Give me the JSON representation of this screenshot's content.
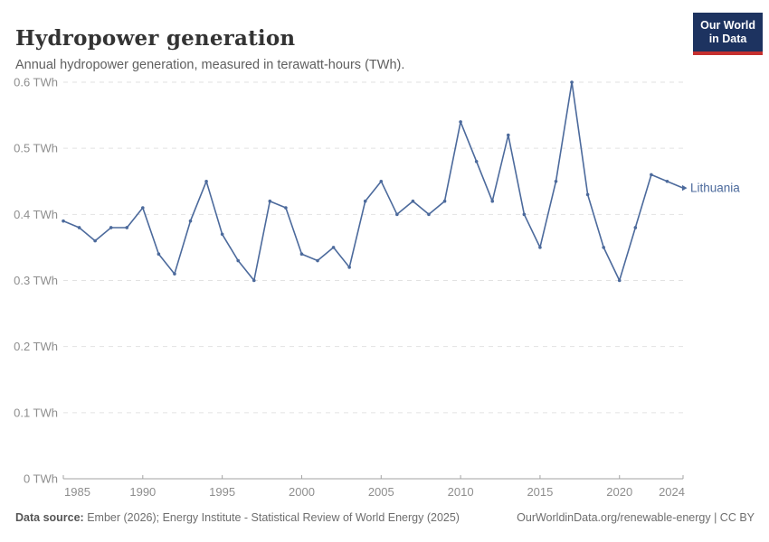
{
  "header": {
    "title": "Hydropower generation",
    "subtitle": "Annual hydropower generation, measured in terawatt-hours (TWh).",
    "logo": {
      "line1": "Our World",
      "line2": "in Data",
      "bg_color": "#1d3360",
      "stripe_color": "#c5302f"
    }
  },
  "footer": {
    "source_label": "Data source:",
    "source_text": " Ember (2026); Energy Institute - Statistical Review of World Energy (2025)",
    "rights_text": "OurWorldinData.org/renewable-energy | CC BY"
  },
  "chart_data": {
    "type": "line",
    "title": "Hydropower generation",
    "unit": "TWh",
    "xlim": [
      1985,
      2024
    ],
    "ylim": [
      0,
      0.6
    ],
    "grid": "horizontal-dashed",
    "legend_position": "line-end-label",
    "xticks": [
      1985,
      1990,
      1995,
      2000,
      2005,
      2010,
      2015,
      2020,
      2024
    ],
    "yticks": [
      0,
      0.1,
      0.2,
      0.3,
      0.4,
      0.5,
      0.6
    ],
    "x": [
      1985,
      1986,
      1987,
      1988,
      1989,
      1990,
      1991,
      1992,
      1993,
      1994,
      1995,
      1996,
      1997,
      1998,
      1999,
      2000,
      2001,
      2002,
      2003,
      2004,
      2005,
      2006,
      2007,
      2008,
      2009,
      2010,
      2011,
      2012,
      2013,
      2014,
      2015,
      2016,
      2017,
      2018,
      2019,
      2020,
      2021,
      2022,
      2023,
      2024
    ],
    "series": [
      {
        "name": "Lithuania",
        "color": "#4c6a9c",
        "values": [
          0.39,
          0.38,
          0.36,
          0.38,
          0.38,
          0.41,
          0.34,
          0.31,
          0.39,
          0.45,
          0.37,
          0.33,
          0.3,
          0.42,
          0.41,
          0.34,
          0.33,
          0.35,
          0.32,
          0.42,
          0.45,
          0.4,
          0.42,
          0.4,
          0.42,
          0.54,
          0.48,
          0.42,
          0.52,
          0.4,
          0.35,
          0.45,
          0.6,
          0.43,
          0.35,
          0.3,
          0.38,
          0.46,
          0.45,
          0.44
        ]
      }
    ],
    "axis_color": "#a3a3a3",
    "gridline_color": "#e2e2e2"
  }
}
